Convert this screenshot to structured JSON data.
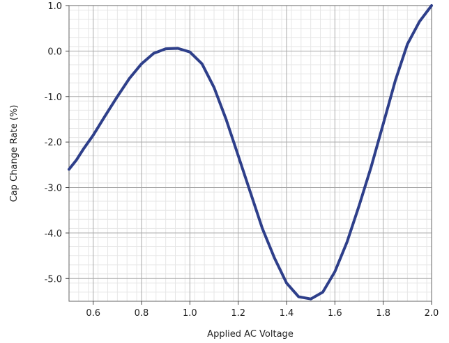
{
  "chart_data": {
    "type": "line",
    "title": "",
    "xlabel": "Applied AC Voltage",
    "ylabel": "Cap Change Rate (%)",
    "xlim": [
      0.5,
      2.0
    ],
    "ylim": [
      -5.5,
      1.0
    ],
    "xticks": [
      "0.6",
      "0.8",
      "1.0",
      "1.2",
      "1.4",
      "1.6",
      "1.8",
      "2.0"
    ],
    "yticks": [
      "1.0",
      "0.0",
      "-1.0",
      "-2.0",
      "-3.0",
      "-4.0",
      "-5.0"
    ],
    "grid": true,
    "minor_grid": true,
    "line_color": "#2e3f8a",
    "series": [
      {
        "name": "",
        "x": [
          0.5,
          0.53,
          0.56,
          0.6,
          0.65,
          0.7,
          0.75,
          0.8,
          0.85,
          0.9,
          0.95,
          1.0,
          1.05,
          1.1,
          1.15,
          1.2,
          1.25,
          1.3,
          1.35,
          1.4,
          1.45,
          1.5,
          1.55,
          1.6,
          1.65,
          1.7,
          1.75,
          1.8,
          1.85,
          1.9,
          1.95,
          2.0
        ],
        "y": [
          -2.6,
          -2.4,
          -2.15,
          -1.85,
          -1.42,
          -1.0,
          -0.6,
          -0.28,
          -0.05,
          0.05,
          0.06,
          -0.02,
          -0.28,
          -0.8,
          -1.5,
          -2.3,
          -3.1,
          -3.9,
          -4.55,
          -5.1,
          -5.4,
          -5.45,
          -5.3,
          -4.85,
          -4.2,
          -3.4,
          -2.55,
          -1.6,
          -0.65,
          0.15,
          0.65,
          1.0
        ]
      }
    ]
  }
}
